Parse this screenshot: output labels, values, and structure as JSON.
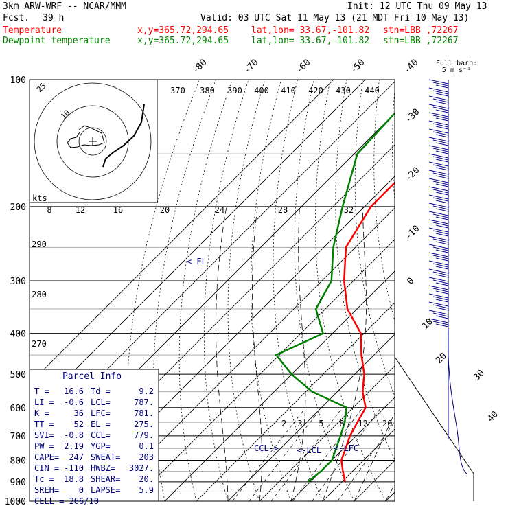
{
  "header": {
    "model": "3km ARW-WRF -- NCAR/MMM",
    "init": "Init: 12 UTC Thu 09 May 13",
    "fcst_label": "Fcst.",
    "fcst_value": "39 h",
    "valid": "Valid: 03 UTC Sat 11 May 13 (21 MDT Fri 10 May 13)",
    "temp_label": "Temperature",
    "dew_label": "Dewpoint temperature",
    "xy": "x,y=365.72,294.65",
    "latlon": "lat,lon= 33.67,-101.82",
    "stn": "stn=LBB ,72267",
    "colors": {
      "temperature": "#ff0000",
      "dewpoint": "#008000",
      "black": "#000000",
      "navy": "#000080"
    }
  },
  "barb_key": {
    "line1": "Full barb:",
    "line2": "5 m s⁻¹"
  },
  "chart_data": {
    "type": "line",
    "xlabel": "",
    "ylabel": "",
    "pressure_ticks": [
      "100",
      "200",
      "300",
      "400",
      "500",
      "600",
      "700",
      "800",
      "900",
      "1000"
    ],
    "isotherm_labels": [
      "-80",
      "-70",
      "-60",
      "-50",
      "-40",
      "-30",
      "-20",
      "-10",
      "0",
      "10",
      "20",
      "30",
      "40"
    ],
    "theta_labels": [
      "370",
      "380",
      "390",
      "400",
      "410",
      "420",
      "430",
      "440"
    ],
    "theta_left_labels": [
      "290",
      "280",
      "270"
    ],
    "mixing_ratio_labels": [
      "2",
      "3",
      "5",
      "8",
      "12",
      "20"
    ],
    "hodograph_speed_labels": [
      "8",
      "12",
      "16",
      "20",
      "24",
      "28",
      "32"
    ],
    "hodograph_ring_labels": [
      "25",
      "10"
    ],
    "hodograph_unit": "kts",
    "series": [
      {
        "name": "Temperature",
        "color": "#ff0000",
        "points": [
          [
            900,
            21
          ],
          [
            850,
            17
          ],
          [
            800,
            13
          ],
          [
            700,
            8
          ],
          [
            650,
            6
          ],
          [
            600,
            4
          ],
          [
            550,
            -2
          ],
          [
            500,
            -7
          ],
          [
            450,
            -14
          ],
          [
            400,
            -21
          ],
          [
            350,
            -33
          ],
          [
            300,
            -43
          ],
          [
            250,
            -53
          ],
          [
            200,
            -58
          ],
          [
            150,
            -58
          ],
          [
            100,
            -59
          ]
        ]
      },
      {
        "name": "Dewpoint temperature",
        "color": "#008000",
        "points": [
          [
            900,
            9.2
          ],
          [
            850,
            10
          ],
          [
            800,
            10
          ],
          [
            700,
            5
          ],
          [
            650,
            2
          ],
          [
            600,
            -2
          ],
          [
            550,
            -18
          ],
          [
            500,
            -30
          ],
          [
            450,
            -41
          ],
          [
            400,
            -33
          ],
          [
            350,
            -43
          ],
          [
            300,
            -47
          ],
          [
            250,
            -57
          ],
          [
            200,
            -67
          ],
          [
            150,
            -79
          ],
          [
            120,
            -80
          ],
          [
            100,
            -79
          ]
        ]
      }
    ],
    "annotations": {
      "el": "<-EL",
      "ccl": "CCL->",
      "lcl": "<-LCL",
      "lfc": "<-LFC"
    }
  },
  "parcel": {
    "title": "Parcel Info",
    "rows": [
      [
        "T  =",
        "16.6",
        "Td =",
        "9.2"
      ],
      [
        "LI =",
        "-0.6",
        "LCL=",
        "787."
      ],
      [
        "K  =",
        "36",
        "LFC=",
        "781."
      ],
      [
        "TT =",
        "52",
        "EL =",
        "275."
      ],
      [
        "SVI=",
        "-0.8",
        "CCL=",
        "779."
      ],
      [
        "PW =",
        "2.19",
        "YGP=",
        "0.1"
      ],
      [
        "CAPE=",
        "247",
        "SWEAT=",
        "203"
      ],
      [
        "CIN =",
        "-110",
        "HWBZ=",
        "3027."
      ],
      [
        "Tc =",
        "18.8",
        "SHEAR=",
        "20."
      ],
      [
        "SREH=",
        "0",
        "LAPSE=",
        "5.9"
      ]
    ],
    "cell": "CELL = 266/10"
  }
}
